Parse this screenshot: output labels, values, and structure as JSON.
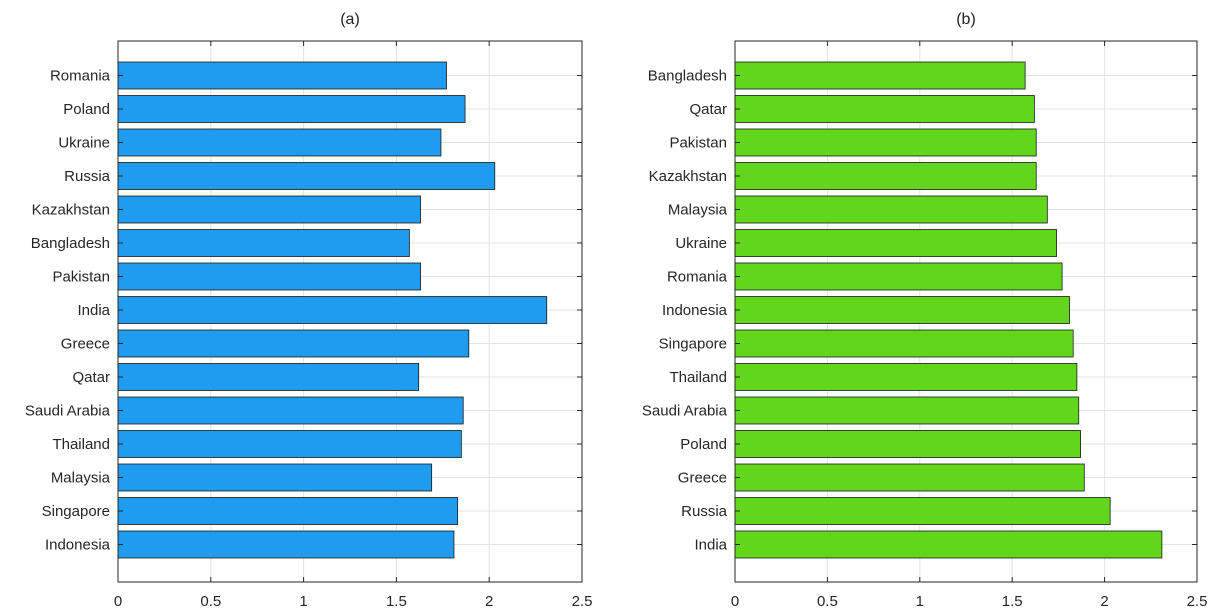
{
  "chart_data": [
    {
      "type": "bar",
      "orientation": "horizontal",
      "title": "(a)",
      "color": "#1f9cf0",
      "categories": [
        "Romania",
        "Poland",
        "Ukraine",
        "Russia",
        "Kazakhstan",
        "Bangladesh",
        "Pakistan",
        "India",
        "Greece",
        "Qatar",
        "Saudi Arabia",
        "Thailand",
        "Malaysia",
        "Singapore",
        "Indonesia"
      ],
      "values": [
        1.77,
        1.87,
        1.74,
        2.03,
        1.63,
        1.57,
        1.63,
        2.31,
        1.89,
        1.62,
        1.86,
        1.85,
        1.69,
        1.83,
        1.81
      ],
      "xlim": [
        0,
        2.5
      ],
      "xticks": [
        0,
        0.5,
        1,
        1.5,
        2,
        2.5
      ],
      "xtick_labels": [
        "0",
        "0.5",
        "1",
        "1.5",
        "2",
        "2.5"
      ],
      "grid": true
    },
    {
      "type": "bar",
      "orientation": "horizontal",
      "title": "(b)",
      "color": "#62d61b",
      "categories": [
        "Bangladesh",
        "Qatar",
        "Pakistan",
        "Kazakhstan",
        "Malaysia",
        "Ukraine",
        "Romania",
        "Indonesia",
        "Singapore",
        "Thailand",
        "Saudi Arabia",
        "Poland",
        "Greece",
        "Russia",
        "India"
      ],
      "values": [
        1.57,
        1.62,
        1.63,
        1.63,
        1.69,
        1.74,
        1.77,
        1.81,
        1.83,
        1.85,
        1.86,
        1.87,
        1.89,
        2.03,
        2.31
      ],
      "xlim": [
        0,
        2.5
      ],
      "xticks": [
        0,
        0.5,
        1,
        1.5,
        2,
        2.5
      ],
      "xtick_labels": [
        "0",
        "0.5",
        "1",
        "1.5",
        "2",
        "2.5"
      ],
      "grid": true
    }
  ]
}
